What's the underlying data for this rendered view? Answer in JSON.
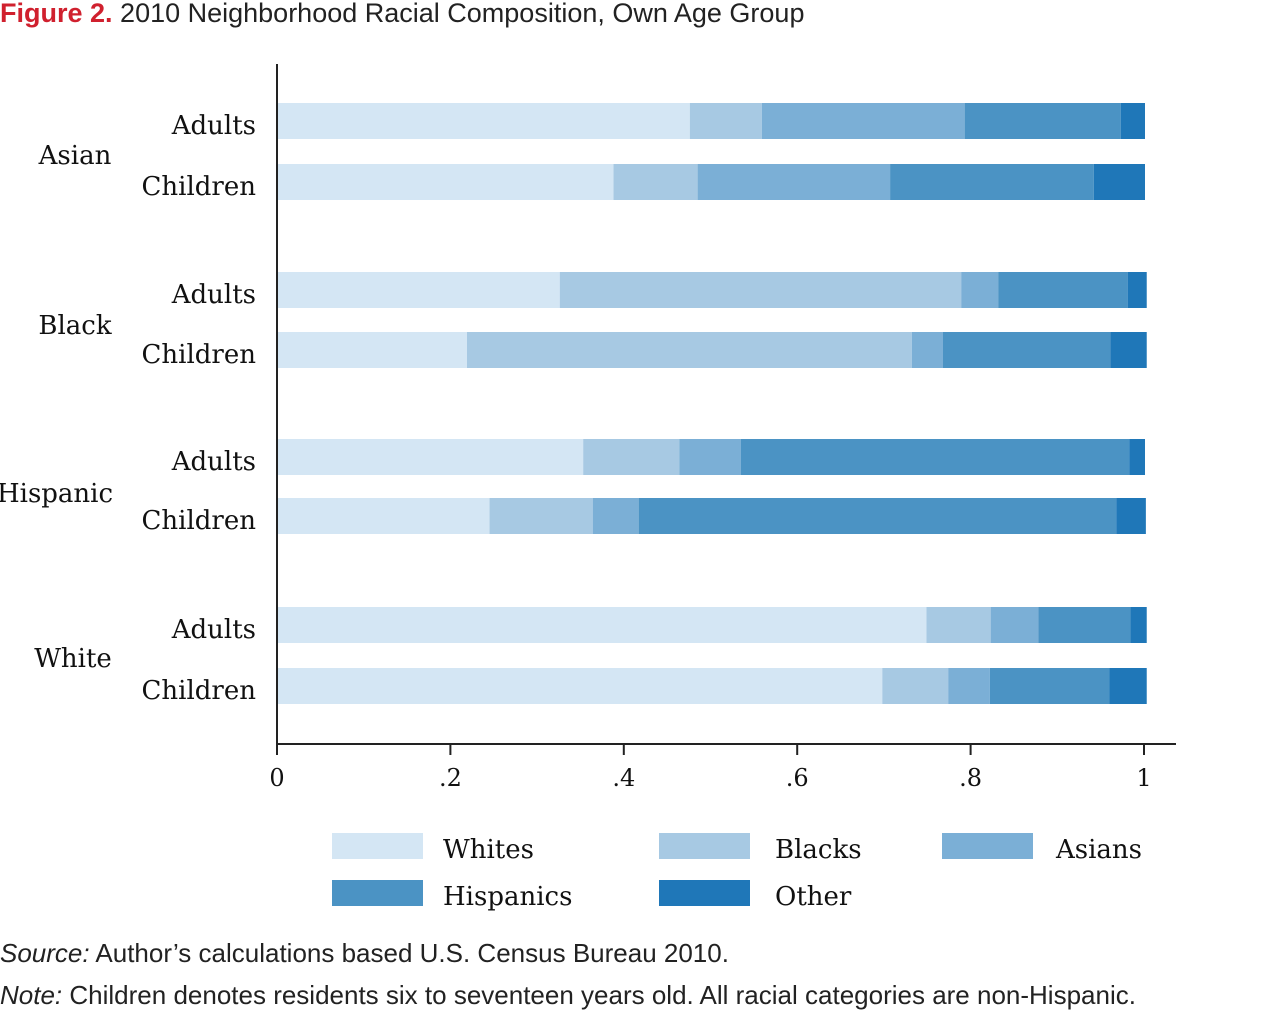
{
  "figure": {
    "label": "Figure 2.",
    "title": "2010 Neighborhood Racial Composition, Own Age Group"
  },
  "source": {
    "label": "Source:",
    "text": "Author’s calculations based U.S. Census Bureau 2010."
  },
  "note": {
    "label": "Note:",
    "text": "Children denotes residents six to seventeen years old. All racial categories are non-Hispanic."
  },
  "chart_data": {
    "type": "bar",
    "orientation": "horizontal",
    "stacked": true,
    "xlim": [
      0,
      1
    ],
    "xticks": [
      0,
      0.2,
      0.4,
      0.6,
      0.8,
      1
    ],
    "xtick_labels": [
      "0",
      ".2",
      ".4",
      ".6",
      ".8",
      "1"
    ],
    "grid": false,
    "legend_position": "bottom",
    "groups": [
      "Asian",
      "Black",
      "Hispanic",
      "White"
    ],
    "subcategories": [
      "Adults",
      "Children"
    ],
    "series": [
      {
        "name": "Whites",
        "color": "#d4e6f4",
        "values": [
          0.475,
          0.387,
          0.325,
          0.218,
          0.352,
          0.244,
          0.748,
          0.697
        ]
      },
      {
        "name": "Blacks",
        "color": "#a7c9e3",
        "values": [
          0.083,
          0.097,
          0.463,
          0.513,
          0.111,
          0.119,
          0.074,
          0.076
        ]
      },
      {
        "name": "Asians",
        "color": "#7bafd6",
        "values": [
          0.234,
          0.222,
          0.043,
          0.036,
          0.071,
          0.053,
          0.055,
          0.048
        ]
      },
      {
        "name": "Hispanics",
        "color": "#4b93c4",
        "values": [
          0.18,
          0.235,
          0.149,
          0.193,
          0.448,
          0.551,
          0.106,
          0.138
        ]
      },
      {
        "name": "Other",
        "color": "#1f77b8",
        "values": [
          0.028,
          0.059,
          0.022,
          0.042,
          0.018,
          0.034,
          0.019,
          0.043
        ]
      }
    ]
  }
}
